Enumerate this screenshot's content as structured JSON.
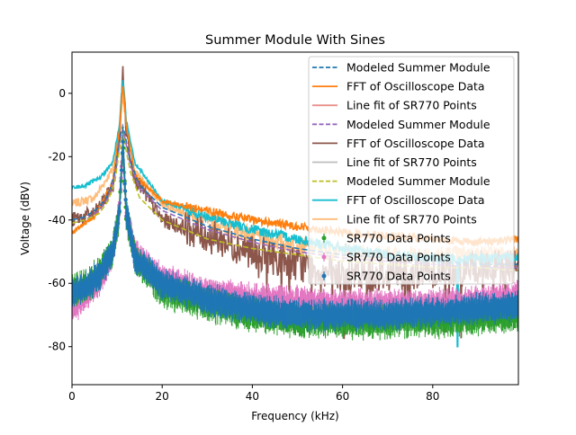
{
  "chart_data": {
    "type": "line",
    "title": "Summer Module With Sines",
    "xlabel": "Frequency (kHz)",
    "ylabel": "Voltage (dBV)",
    "xlim": [
      0,
      99
    ],
    "ylim": [
      -92,
      13
    ],
    "xticks": [
      0,
      20,
      40,
      60,
      80
    ],
    "yticks": [
      0,
      -20,
      -40,
      -60,
      -80
    ],
    "grid": false,
    "legend_position": "top-right",
    "legend": [
      {
        "label": "Modeled Summer Module",
        "color": "#1f77b4",
        "style": "dashed"
      },
      {
        "label": "FFT of Oscilloscope Data",
        "color": "#ff7f0e",
        "style": "solid"
      },
      {
        "label": "Line fit of SR770 Points",
        "color": "#e8908c",
        "style": "solid"
      },
      {
        "label": "Modeled Summer Module",
        "color": "#9467bd",
        "style": "dashed"
      },
      {
        "label": "FFT of Oscilloscope Data",
        "color": "#8c564b",
        "style": "solid"
      },
      {
        "label": "Line fit of SR770 Points",
        "color": "#bdbdbd",
        "style": "solid"
      },
      {
        "label": "Modeled Summer Module",
        "color": "#bcbd22",
        "style": "dashed"
      },
      {
        "label": "FFT of Oscilloscope Data",
        "color": "#17becf",
        "style": "solid"
      },
      {
        "label": "Line fit of SR770 Points",
        "color": "#ffbb78",
        "style": "solid"
      },
      {
        "label": "SR770 Data Points",
        "color": "#2ca02c",
        "style": "errorbar"
      },
      {
        "label": "SR770 Data Points",
        "color": "#e377c2",
        "style": "errorbar"
      },
      {
        "label": "SR770 Data Points",
        "color": "#1f77b4",
        "style": "errorbar"
      }
    ],
    "series": [
      {
        "color": "#ffbb78",
        "kind": "noisy",
        "noise": 3.0,
        "x": [
          0,
          5,
          9,
          10.5,
          11.3,
          12,
          14,
          20,
          30,
          40,
          50,
          60,
          70,
          80,
          90,
          99
        ],
        "y": [
          -35,
          -33,
          -24,
          -12,
          0,
          -10,
          -25,
          -35,
          -40,
          -45,
          -48,
          -50,
          -51,
          -51,
          -51,
          -51
        ]
      },
      {
        "color": "#8c564b",
        "kind": "noisy",
        "noise": 5.5,
        "x": [
          0,
          5,
          9,
          10.5,
          11.3,
          12,
          14,
          20,
          30,
          40,
          50,
          60,
          70,
          80,
          90,
          99
        ],
        "y": [
          -40,
          -38,
          -30,
          -15,
          8,
          -12,
          -27,
          -40,
          -45,
          -50,
          -54,
          -58,
          -57,
          -56,
          -55,
          -55
        ]
      },
      {
        "color": "#17becf",
        "kind": "noisy",
        "noise": 1.6,
        "x": [
          0,
          3,
          6,
          9,
          10.5,
          11.3,
          12,
          14,
          20,
          30,
          40,
          50,
          60,
          70,
          80,
          90,
          99
        ],
        "y": [
          -30,
          -29,
          -27,
          -22,
          -10,
          5,
          -8,
          -22,
          -34,
          -39,
          -43,
          -46,
          -49,
          -51,
          -52,
          -52,
          -52
        ]
      },
      {
        "color": "#ff7f0e",
        "kind": "noisy",
        "noise": 1.3,
        "x": [
          0,
          5,
          9,
          10.5,
          11.3,
          12,
          14,
          20,
          30,
          40,
          50,
          60,
          70,
          80,
          90,
          99
        ],
        "y": [
          -44,
          -39,
          -28,
          -12,
          3,
          -10,
          -26,
          -34,
          -37,
          -40,
          -42,
          -44,
          -45,
          -46,
          -47,
          -46
        ]
      },
      {
        "color": "#1f77b4",
        "kind": "dashed",
        "x": [
          0,
          3,
          6,
          8,
          9.5,
          10.5,
          11.3,
          12,
          13,
          15,
          20,
          30,
          40,
          50,
          60,
          70,
          80,
          90,
          99
        ],
        "y": [
          -40,
          -39,
          -36,
          -32,
          -25,
          -15,
          -10,
          -15,
          -22,
          -29,
          -36,
          -42,
          -46,
          -49,
          -51,
          -52,
          -53,
          -54,
          -54
        ]
      },
      {
        "color": "#9467bd",
        "kind": "dashed",
        "x": [
          0,
          3,
          6,
          8,
          9.5,
          10.5,
          11.3,
          12,
          13,
          15,
          20,
          30,
          40,
          50,
          60,
          70,
          80,
          90,
          99
        ],
        "y": [
          -41,
          -40,
          -37,
          -33,
          -26,
          -16,
          -11,
          -16,
          -23,
          -30,
          -37,
          -43,
          -47,
          -50,
          -52,
          -53,
          -54,
          -55,
          -55
        ]
      },
      {
        "color": "#bcbd22",
        "kind": "dashed",
        "x": [
          0,
          3,
          6,
          8,
          9.5,
          10.5,
          11.3,
          12,
          13,
          15,
          20,
          30,
          40,
          50,
          60,
          70,
          80,
          90,
          99
        ],
        "y": [
          -41,
          -40,
          -38,
          -34,
          -28,
          -18,
          -12,
          -18,
          -25,
          -33,
          -40,
          -46,
          -49,
          -51,
          -53,
          -54,
          -55,
          -55,
          -56
        ]
      },
      {
        "color": "#e8908c",
        "kind": "solid",
        "x": [
          0,
          5,
          9,
          10.5,
          11.3,
          12,
          14,
          20,
          30,
          50,
          70,
          99
        ],
        "y": [
          -69,
          -64,
          -52,
          -35,
          -15,
          -35,
          -52,
          -60,
          -63,
          -66,
          -67,
          -65
        ]
      },
      {
        "color": "#bdbdbd",
        "kind": "solid",
        "x": [
          0,
          5,
          9,
          10.5,
          11.3,
          12,
          14,
          20,
          30,
          50,
          70,
          99
        ],
        "y": [
          -62,
          -60,
          -50,
          -35,
          -15,
          -35,
          -52,
          -61,
          -65,
          -69,
          -70,
          -68
        ]
      },
      {
        "color": "#e377c2",
        "kind": "points",
        "noise": 1.4,
        "x": [
          0,
          3,
          6,
          9,
          10.5,
          11.3,
          12,
          14,
          20,
          30,
          40,
          50,
          60,
          70,
          80,
          90,
          99
        ],
        "y": [
          -68,
          -64,
          -59,
          -51,
          -38,
          -15,
          -38,
          -51,
          -59,
          -63,
          -65,
          -66,
          -67,
          -67,
          -67,
          -66,
          -64
        ]
      },
      {
        "color": "#2ca02c",
        "kind": "points",
        "noise": 1.7,
        "x": [
          0,
          3,
          6,
          9,
          10.5,
          11.3,
          12,
          14,
          20,
          30,
          40,
          50,
          60,
          70,
          80,
          90,
          99
        ],
        "y": [
          -62,
          -61,
          -57,
          -50,
          -38,
          -15,
          -38,
          -52,
          -62,
          -67,
          -70,
          -72,
          -72,
          -72,
          -72,
          -71,
          -70
        ]
      },
      {
        "color": "#1f77b4",
        "kind": "points",
        "noise": 1.2,
        "x": [
          0,
          3,
          6,
          9,
          10.5,
          11.3,
          12,
          14,
          20,
          30,
          40,
          50,
          60,
          70,
          80,
          90,
          99
        ],
        "y": [
          -63,
          -61,
          -58,
          -50,
          -38,
          -15,
          -38,
          -52,
          -60,
          -65,
          -68,
          -70,
          -70,
          -70,
          -69,
          -68,
          -67
        ]
      }
    ]
  }
}
